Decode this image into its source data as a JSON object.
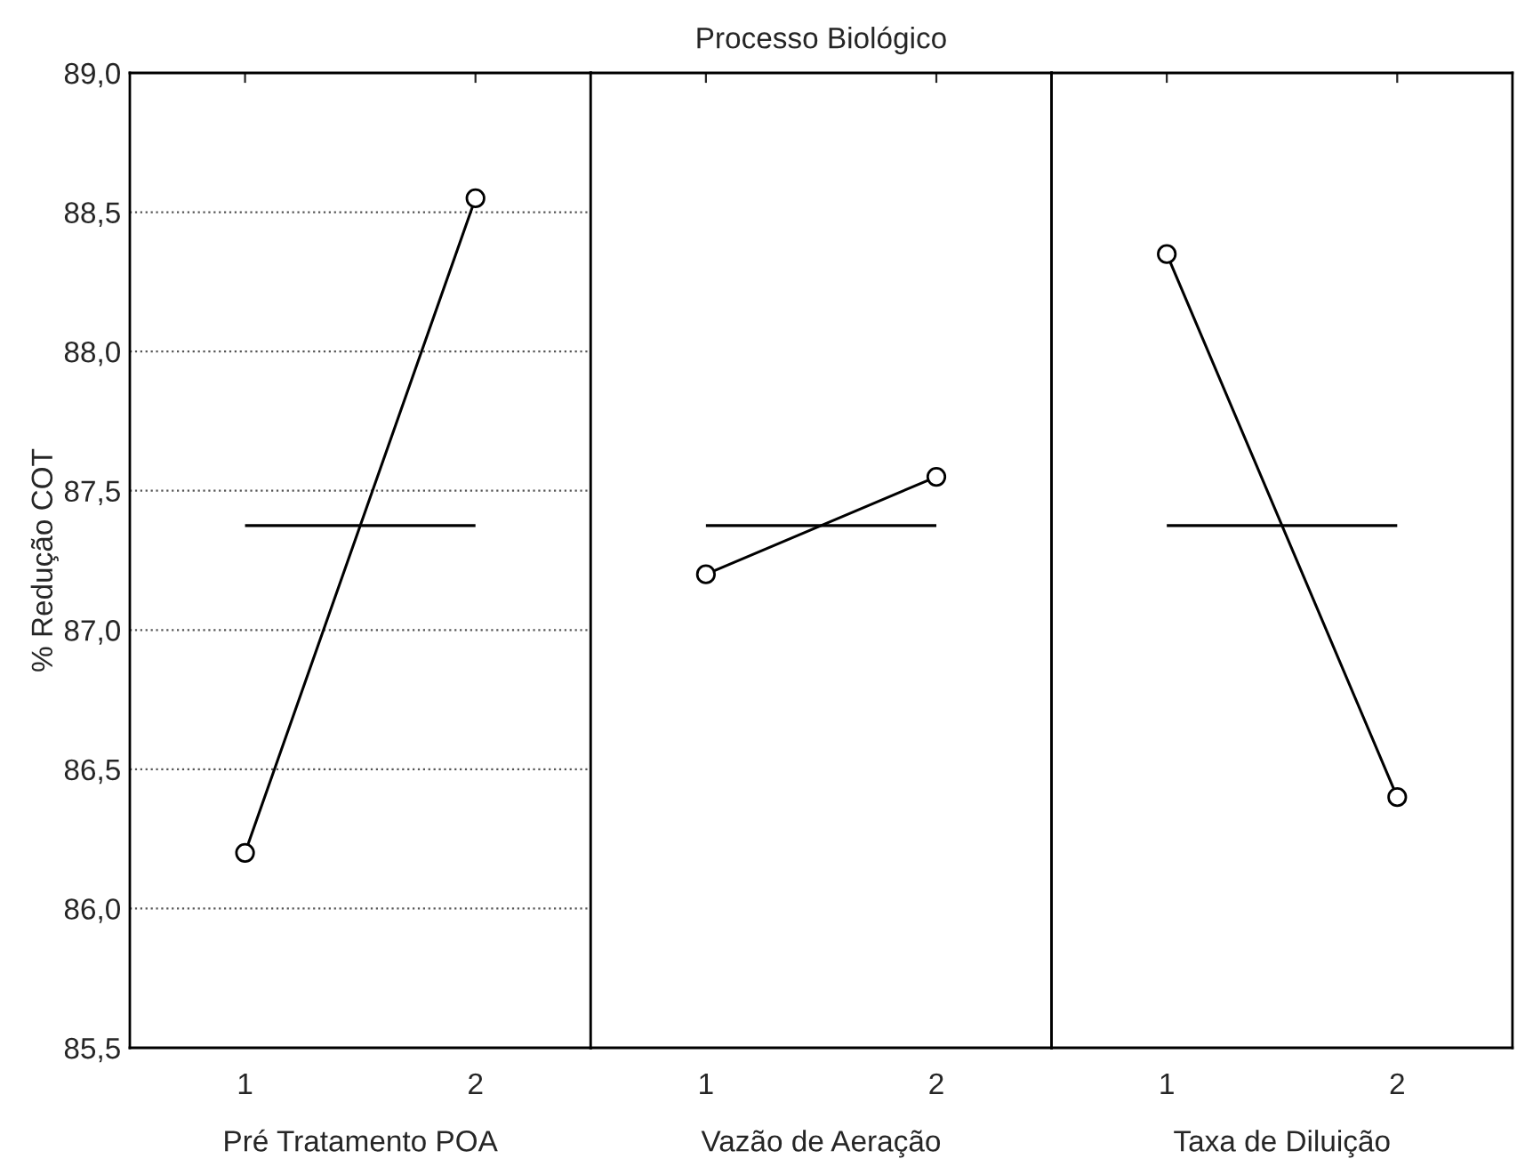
{
  "chart_data": [
    {
      "type": "line",
      "xlabel": "Pré Tratamento POA",
      "ylabel": "% Redução COT",
      "categories": [
        "1",
        "2"
      ],
      "series": [
        {
          "color": "#000000",
          "values": [
            86.2,
            88.55
          ]
        }
      ],
      "ylim": [
        85.5,
        89.0
      ],
      "yticks": [
        {
          "value": 85.5,
          "label": "85,5"
        },
        {
          "value": 86.0,
          "label": "86,0"
        },
        {
          "value": 86.5,
          "label": "86,5"
        },
        {
          "value": 87.0,
          "label": "87,0"
        },
        {
          "value": 87.5,
          "label": "87,5"
        },
        {
          "value": 88.0,
          "label": "88,0"
        },
        {
          "value": 88.5,
          "label": "88,5"
        },
        {
          "value": 89.0,
          "label": "89,0"
        }
      ],
      "ref_lines": [
        {
          "axis": "y",
          "value": 87.375,
          "color": "#000000",
          "line_style": "solid"
        }
      ],
      "grid": "y",
      "marker": "circle",
      "line_style": "solid"
    },
    {
      "type": "line",
      "title": "Processo Biológico",
      "xlabel": "Vazão de Aeração",
      "categories": [
        "1",
        "2"
      ],
      "series": [
        {
          "color": "#000000",
          "values": [
            87.2,
            87.55
          ]
        }
      ],
      "ylim": [
        85.5,
        89.0
      ],
      "tick_labels": "x",
      "ref_lines": [
        {
          "axis": "y",
          "value": 87.375,
          "color": "#000000",
          "line_style": "solid"
        }
      ],
      "grid": "y",
      "marker": "circle",
      "line_style": "solid"
    },
    {
      "type": "line",
      "xlabel": "Taxa de Diluição",
      "categories": [
        "1",
        "2"
      ],
      "series": [
        {
          "color": "#000000",
          "values": [
            88.35,
            86.4
          ]
        }
      ],
      "ylim": [
        85.5,
        89.0
      ],
      "tick_labels": "x",
      "ref_lines": [
        {
          "axis": "y",
          "value": 87.375,
          "color": "#000000",
          "line_style": "solid"
        }
      ],
      "grid": "y",
      "marker": "circle",
      "line_style": "solid"
    }
  ]
}
